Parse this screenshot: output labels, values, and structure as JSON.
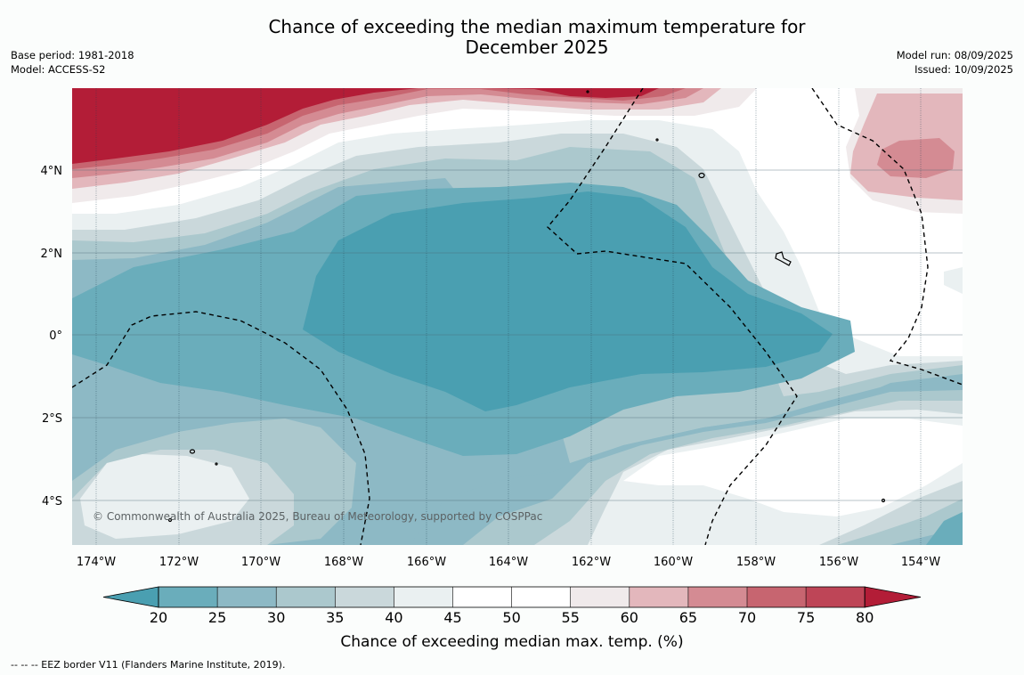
{
  "title_line1": "Chance of exceeding the median maximum temperature for",
  "title_line2": "December 2025",
  "base_period": "Base period: 1981-2018",
  "model": "Model: ACCESS-S2",
  "model_run": "Model run: 08/09/2025",
  "issued": "Issued: 10/09/2025",
  "copyright": "© Commonwealth of Australia 2025, Bureau of Meteorology, supported by COSPPac",
  "footnote": "--  --  -- EEZ border V11 (Flanders Marine Institute, 2019).",
  "colorbar": {
    "title": "Chance of exceeding median max. temp. (%)",
    "ticks": [
      "20",
      "25",
      "30",
      "35",
      "40",
      "45",
      "50",
      "55",
      "60",
      "65",
      "70",
      "75",
      "80"
    ],
    "colors": [
      "#4a9fb1",
      "#6aadbb",
      "#8db9c5",
      "#abc8cd",
      "#cad8db",
      "#eaf0f1",
      "#ffffff",
      "#ffffff",
      "#f0eaeb",
      "#e3b7bc",
      "#d48b93",
      "#c76570",
      "#be4557",
      "#b31d37"
    ]
  },
  "map": {
    "x_ticks": [
      "174°W",
      "172°W",
      "170°W",
      "168°W",
      "166°W",
      "164°W",
      "162°W",
      "160°W",
      "158°W",
      "156°W",
      "154°W"
    ],
    "y_ticks": [
      "4°N",
      "2°N",
      "0°",
      "2°S",
      "4°S"
    ]
  }
}
